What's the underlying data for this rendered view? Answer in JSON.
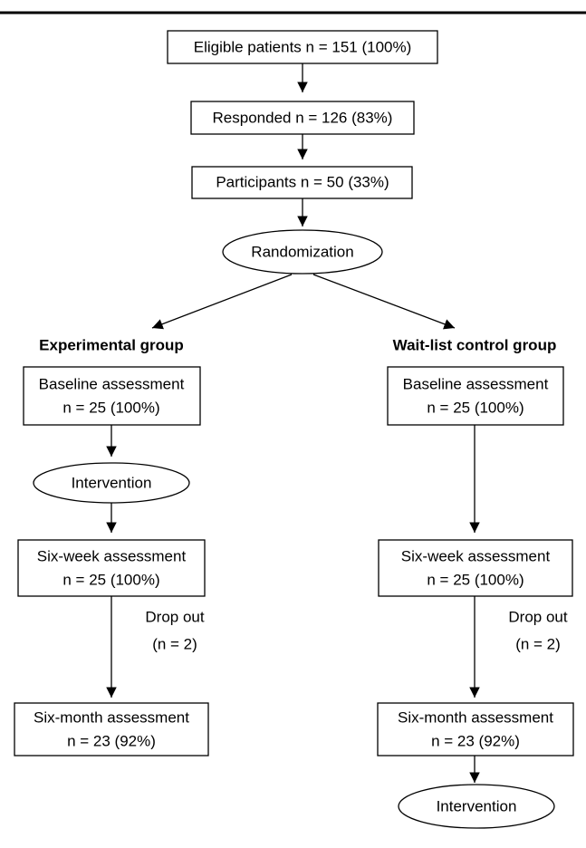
{
  "nodes": [
    {
      "label": "Eligible patients n = 151 (100%)"
    },
    {
      "label": "Responded n = 126 (83%)"
    },
    {
      "label": "Participants n = 50 (33%)"
    },
    {
      "label": "Randomization"
    }
  ],
  "groups": [
    {
      "title": "Experimental group",
      "baseline": [
        "Baseline assessment",
        "n = 25 (100%)"
      ],
      "intervention": "Intervention",
      "six_week": [
        "Six-week assessment",
        "n = 25 (100%)"
      ],
      "dropout": [
        "Drop out",
        "(n = 2)"
      ],
      "six_month": [
        "Six-month assessment",
        "n = 23 (92%)"
      ]
    },
    {
      "title": "Wait-list control group",
      "baseline": [
        "Baseline assessment",
        "n = 25 (100%)"
      ],
      "six_week": [
        "Six-week assessment",
        "n = 25 (100%)"
      ],
      "dropout": [
        "Drop out",
        "(n = 2)"
      ],
      "six_month": [
        "Six-month assessment",
        "n = 23 (92%)"
      ],
      "intervention": "Intervention"
    }
  ]
}
